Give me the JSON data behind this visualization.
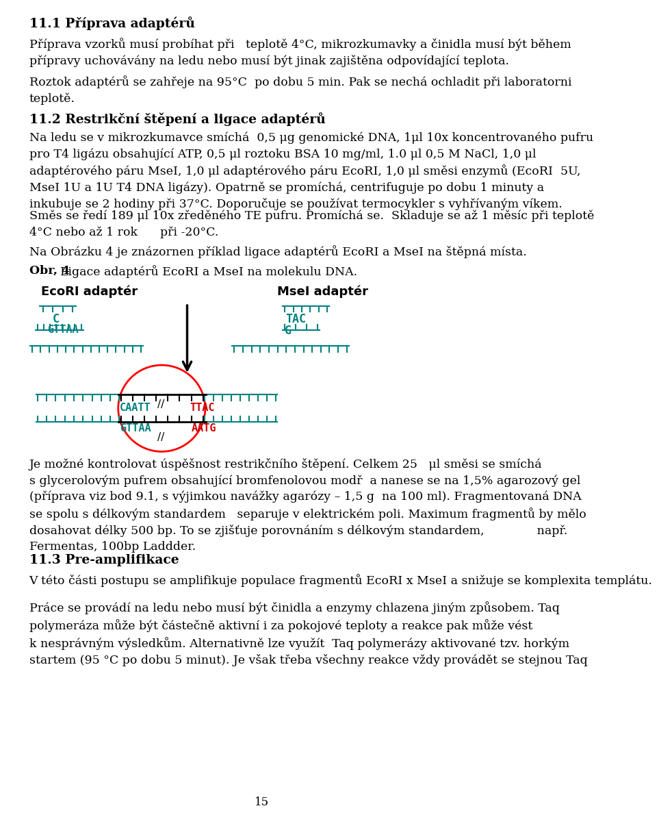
{
  "background_color": "#ffffff",
  "text_color": "#000000",
  "teal_color": "#008080",
  "red_color": "#cc0000",
  "page_number": "15",
  "heading1": "11.1 Příprava adaptérů",
  "heading2": "11.2 Restrikční štěpení a ligace adaptérů",
  "heading3": "11.3 Pre-amplifikace",
  "obr_label": "Obr. 4",
  "obr_text": ". Ligace adaptérů EcoRI a MseI na molekulu DNA.",
  "ecori_label": "EcoRI adaptér",
  "msei_label": "MseI adaptér",
  "p1_line1": "Příprava vzorků musí probíhat při   teplotě 4°C, mikrozkumavky a činidla musí být během",
  "p1_line2": "přípravy uchovávány na ledu nebo musí být jinak zajištěna odpovídající teplota.",
  "p2_line1": "Roztok adaptérů se zahřeje na 95°C  po dobu 5 min. Pak se nechá ochladit při laboratorni",
  "p2_line2": "teplotě.",
  "p3_line1": "Na ledu se v mikrozkumavce smíchá  0,5 μg genomické DNA, 1μl 10x koncentrovaného pufru",
  "p3_line2": "pro T4 ligázu obsahující ATP, 0,5 μl roztoku BSA 10 mg/ml, 1.0 μl 0,5 M NaCl, 1,0 μl",
  "p3_line3": "adaptérového páru MseI, 1,0 μl adaptérového páru EcoRI, 1,0 μl směsi enzymů (EcoRI  5U,",
  "p3_line4": "MseI 1U a 1U T4 DNA ligázy). Opatrně se promíchá, centrifuguje po dobu 1 minuty a",
  "p3_line5": "inkubuje se 2 hodiny při 37°C. Doporučuje se používat termocykler s vyhřívaným víkem.",
  "p4_line1": "Směs se ředí 189 μl 10x zředěného TE pufru. Promíchá se.  Skladuje se až 1 měsíc při teplotě",
  "p4_line2": "4°C nebo až 1 rok      při -20°C.",
  "p5": "Na Obrázku 4 je znázornen příklad ligace adaptérů EcoRI a MseI na štěpná místa.",
  "p6_line1": "Je možné kontrolovat úspěšnost restrikčního štěpení. Celkem 25   μl směsi se smíchá",
  "p6_line2": "s glycerolovým pufrem obsahující bromfenolovou modř  a nanese se na 1,5% agarozový gel",
  "p6_line3": "(příprava viz bod 9.1, s výjimkou navážky agarózy – 1,5 g  na 100 ml). Fragmentovaná DNA",
  "p6_line4": "se spolu s délkovým standardem   separuje v elektrickém poli. Maximum fragmentů by mělo",
  "p6_line5": "dosahovat délky 500 bp. To se zjišťuje porovnáním s délkovým standardem,              např.",
  "p6_line6": "Fermentas, 100bp Laddder.",
  "p7": "V této části postupu se amplifikuje populace fragmentů EcoRI x MseI a snižuje se komplexita templátu.",
  "p8_line1": "Práce se provádí na ledu nebo musí být činidla a enzymy chlazena jiným způsobem. Taq",
  "p8_line2": "polymeráza může být částečně aktivní i za pokojové teploty a reakce pak může vést",
  "p8_line3": "k nesprávným výsledkům. Alternativně lze využít  Taq polymerázy aktivované tzv. horkým",
  "p8_line4": "startem (95 °C po dobu 5 minut). Je však třeba všechny reakce vždy provádět se stejnou Taq"
}
